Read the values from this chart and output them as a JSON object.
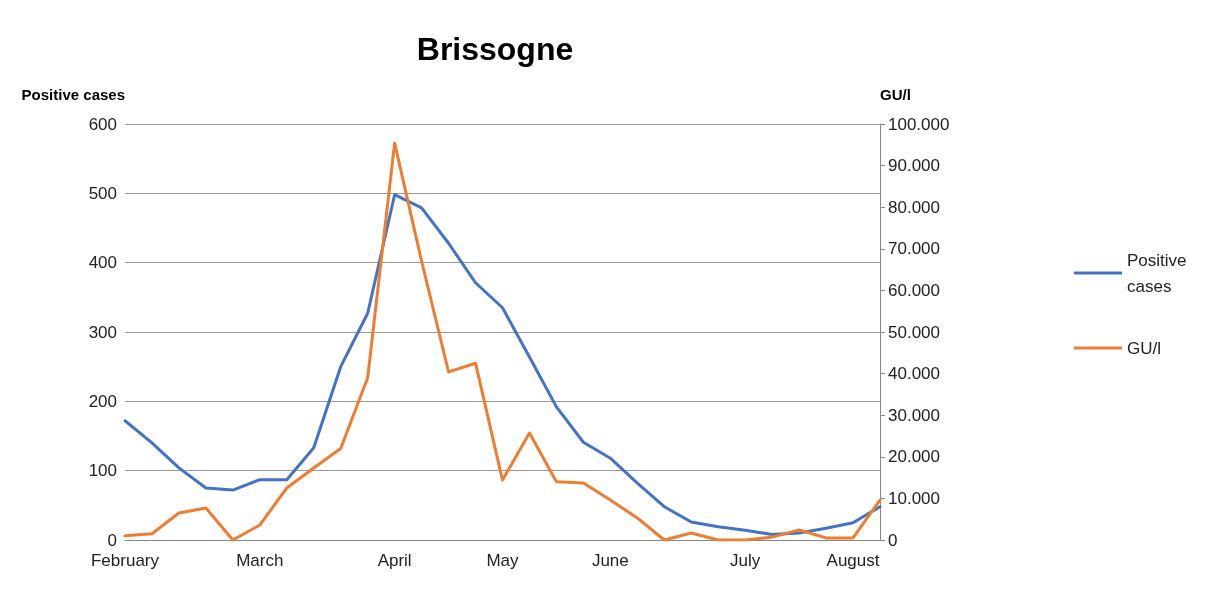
{
  "chart_data": {
    "type": "line",
    "title": "Brissogne",
    "ylabel": "Positive cases",
    "y2label": "GU/l",
    "categories": [
      "February",
      null,
      null,
      null,
      null,
      "March",
      null,
      null,
      null,
      null,
      "April",
      null,
      null,
      null,
      "May",
      null,
      null,
      null,
      "June",
      null,
      null,
      null,
      null,
      "July",
      null,
      null,
      null,
      "August",
      null
    ],
    "series": [
      {
        "name": "Positive cases",
        "color": "#4472c4",
        "values": [
          172,
          140,
          104,
          75,
          72,
          87,
          87,
          133,
          250,
          327,
          498,
          479,
          428,
          371,
          335,
          264,
          192,
          141,
          118,
          82,
          48,
          26,
          19,
          14,
          8,
          10,
          17,
          25,
          48
        ]
      },
      {
        "name": "GU/l",
        "color": "#ed7d31",
        "axis": "y2",
        "values": [
          1000,
          1500,
          6500,
          7700,
          0,
          3600,
          12500,
          17300,
          22000,
          39000,
          95400,
          67000,
          40400,
          42500,
          14400,
          25700,
          14000,
          13700,
          9600,
          5300,
          0,
          1700,
          0,
          0,
          700,
          2400,
          500,
          500,
          9600
        ]
      }
    ],
    "ylim": [
      0,
      600
    ],
    "yticks": [
      0,
      100,
      200,
      300,
      400,
      500,
      600
    ],
    "y2lim": [
      0,
      100000
    ],
    "y2ticks": [
      0,
      {
        "value": 10000,
        "label": "10.000"
      },
      {
        "value": 20000,
        "label": "20.000"
      },
      {
        "value": 30000,
        "label": "30.000"
      },
      {
        "value": 40000,
        "label": "40.000"
      },
      {
        "value": 50000,
        "label": "50.000"
      },
      {
        "value": 60000,
        "label": "60.000"
      },
      {
        "value": 70000,
        "label": "70.000"
      },
      {
        "value": 80000,
        "label": "80.000"
      },
      {
        "value": 90000,
        "label": "90.000"
      },
      {
        "value": 100000,
        "label": "100.000"
      }
    ],
    "grid": "y",
    "legend": "right",
    "marker": "none",
    "line_style": "solid"
  }
}
